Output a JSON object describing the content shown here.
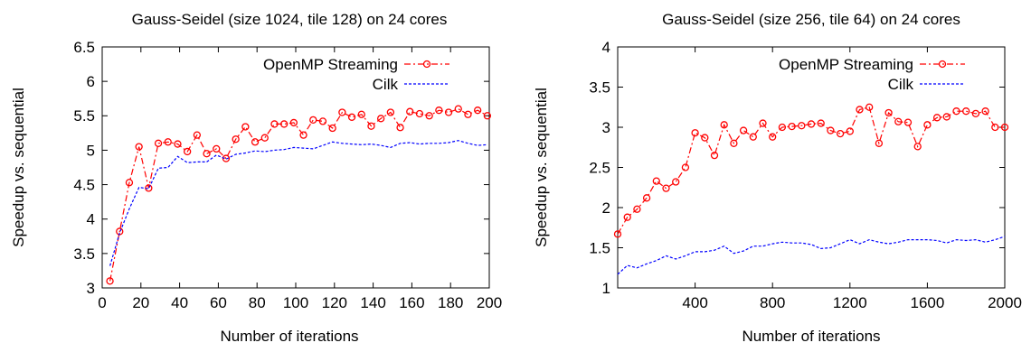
{
  "chart_data": [
    {
      "type": "line",
      "title": "Gauss-Seidel (size 1024, tile 128) on 24 cores",
      "xlabel": "Number of iterations",
      "ylabel": "Speedup vs. sequential",
      "xlim": [
        0,
        200
      ],
      "ylim": [
        3,
        6.5
      ],
      "xticks": [
        0,
        20,
        40,
        60,
        80,
        100,
        120,
        140,
        160,
        180,
        200
      ],
      "yticks": [
        3,
        3.5,
        4,
        4.5,
        5,
        5.5,
        6,
        6.5
      ],
      "ytick_labels": [
        "3",
        "3.5",
        "4",
        "4.5",
        "5",
        "5.5",
        "6",
        "6.5"
      ],
      "grid": false,
      "legend_position": "top-right",
      "series": [
        {
          "name": "OpenMP Streaming",
          "color": "#ff0000",
          "line_style": "dash-dot",
          "marker": "circle",
          "x": [
            4,
            9,
            14,
            19,
            24,
            29,
            34,
            39,
            44,
            49,
            54,
            59,
            64,
            69,
            74,
            79,
            84,
            89,
            94,
            99,
            104,
            109,
            114,
            119,
            124,
            129,
            134,
            139,
            144,
            149,
            154,
            159,
            164,
            169,
            174,
            179,
            184,
            189,
            194,
            199
          ],
          "y": [
            3.1,
            3.82,
            4.53,
            5.05,
            4.45,
            5.1,
            5.12,
            5.09,
            4.98,
            5.22,
            4.95,
            5.02,
            4.88,
            5.16,
            5.34,
            5.12,
            5.18,
            5.38,
            5.38,
            5.4,
            5.22,
            5.44,
            5.42,
            5.32,
            5.55,
            5.48,
            5.52,
            5.35,
            5.46,
            5.55,
            5.33,
            5.56,
            5.53,
            5.5,
            5.58,
            5.55,
            5.6,
            5.52,
            5.58,
            5.5
          ]
        },
        {
          "name": "Cilk",
          "color": "#0000ff",
          "line_style": "dashed",
          "marker": "none",
          "x": [
            4,
            9,
            14,
            19,
            24,
            29,
            34,
            39,
            44,
            49,
            54,
            59,
            64,
            69,
            74,
            79,
            84,
            89,
            94,
            99,
            104,
            109,
            114,
            119,
            124,
            129,
            134,
            139,
            144,
            149,
            154,
            159,
            164,
            169,
            174,
            179,
            184,
            189,
            194,
            199
          ],
          "y": [
            3.32,
            3.8,
            4.15,
            4.46,
            4.44,
            4.74,
            4.75,
            4.91,
            4.82,
            4.83,
            4.83,
            4.93,
            4.87,
            4.94,
            4.96,
            4.99,
            4.98,
            5.0,
            5.01,
            5.04,
            5.03,
            5.02,
            5.07,
            5.12,
            5.1,
            5.09,
            5.08,
            5.09,
            5.07,
            5.04,
            5.1,
            5.11,
            5.09,
            5.1,
            5.1,
            5.11,
            5.14,
            5.1,
            5.07,
            5.08
          ]
        }
      ]
    },
    {
      "type": "line",
      "title": "Gauss-Seidel (size 256, tile 64) on 24 cores",
      "xlabel": "Number of iterations",
      "ylabel": "Speedup vs. sequential",
      "xlim": [
        0,
        2000
      ],
      "ylim": [
        1,
        4
      ],
      "xticks": [
        400,
        800,
        1200,
        1600,
        2000
      ],
      "yticks": [
        1,
        1.5,
        2,
        2.5,
        3,
        3.5,
        4
      ],
      "ytick_labels": [
        "1",
        "1.5",
        "2",
        "2.5",
        "3",
        "3.5",
        "4"
      ],
      "grid": false,
      "legend_position": "top-right",
      "series": [
        {
          "name": "OpenMP Streaming",
          "color": "#ff0000",
          "line_style": "dash-dot",
          "marker": "circle",
          "x": [
            0,
            50,
            100,
            150,
            200,
            250,
            300,
            350,
            400,
            450,
            500,
            550,
            600,
            650,
            700,
            750,
            800,
            850,
            900,
            950,
            1000,
            1050,
            1100,
            1150,
            1200,
            1250,
            1300,
            1350,
            1400,
            1450,
            1500,
            1550,
            1600,
            1650,
            1700,
            1750,
            1800,
            1850,
            1900,
            1950,
            2000
          ],
          "y": [
            1.67,
            1.88,
            1.98,
            2.12,
            2.33,
            2.24,
            2.32,
            2.5,
            2.93,
            2.87,
            2.65,
            3.03,
            2.8,
            2.96,
            2.88,
            3.05,
            2.88,
            3.0,
            3.01,
            3.02,
            3.04,
            3.05,
            2.96,
            2.92,
            2.95,
            3.22,
            3.25,
            2.8,
            3.18,
            3.07,
            3.06,
            2.76,
            3.03,
            3.12,
            3.13,
            3.2,
            3.2,
            3.17,
            3.2,
            3.0,
            3.0
          ]
        },
        {
          "name": "Cilk",
          "color": "#0000ff",
          "line_style": "dashed",
          "marker": "none",
          "x": [
            0,
            50,
            100,
            150,
            200,
            250,
            300,
            350,
            400,
            450,
            500,
            550,
            600,
            650,
            700,
            750,
            800,
            850,
            900,
            950,
            1000,
            1050,
            1100,
            1150,
            1200,
            1250,
            1300,
            1350,
            1400,
            1450,
            1500,
            1550,
            1600,
            1650,
            1700,
            1750,
            1800,
            1850,
            1900,
            1950,
            2000
          ],
          "y": [
            1.17,
            1.28,
            1.25,
            1.3,
            1.34,
            1.4,
            1.36,
            1.4,
            1.45,
            1.45,
            1.47,
            1.52,
            1.43,
            1.46,
            1.52,
            1.52,
            1.55,
            1.57,
            1.56,
            1.56,
            1.54,
            1.49,
            1.5,
            1.55,
            1.6,
            1.55,
            1.6,
            1.57,
            1.55,
            1.57,
            1.6,
            1.6,
            1.6,
            1.59,
            1.56,
            1.6,
            1.59,
            1.6,
            1.57,
            1.6,
            1.64
          ]
        }
      ]
    }
  ]
}
